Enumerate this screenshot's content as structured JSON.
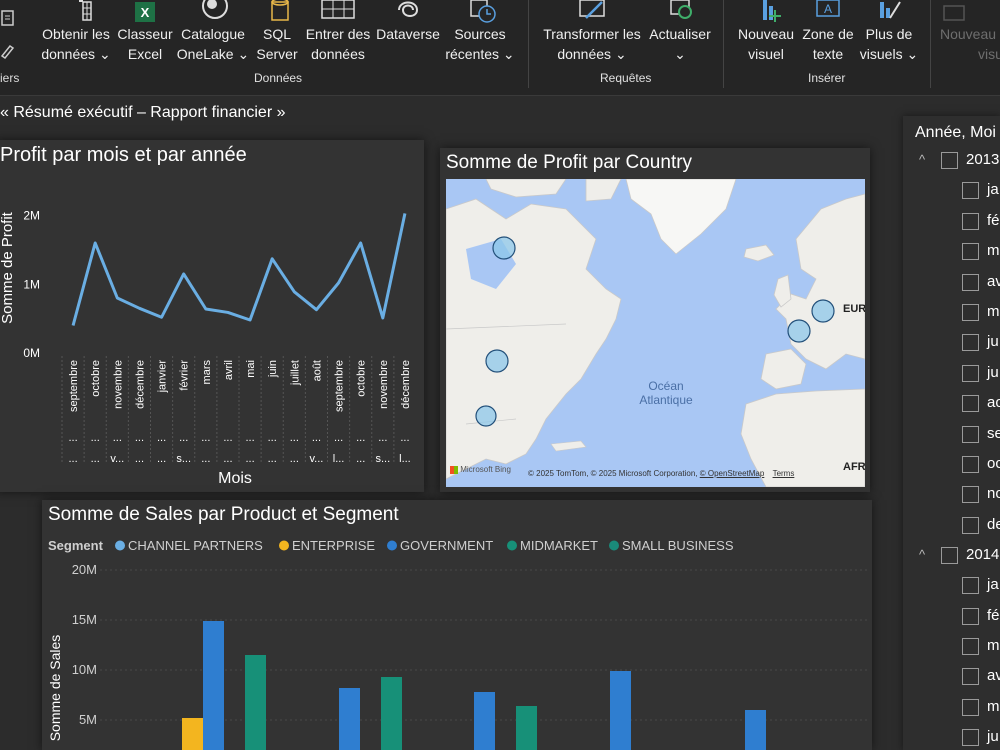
{
  "ribbon": {
    "partial_left_label": "iers",
    "buttons": [
      {
        "line1": "Obtenir les",
        "line2": "données",
        "dropdown": true,
        "icon": "table-icon"
      },
      {
        "line1": "Classeur",
        "line2": "Excel",
        "dropdown": false,
        "icon": "excel-icon"
      },
      {
        "line1": "Catalogue",
        "line2": "OneLake",
        "dropdown": true,
        "icon": "onelake-icon"
      },
      {
        "line1": "SQL",
        "line2": "Server",
        "dropdown": false,
        "icon": "database-icon"
      },
      {
        "line1": "Entrer des",
        "line2": "données",
        "dropdown": false,
        "icon": "grid-icon"
      },
      {
        "line1": "Dataverse",
        "line2": "",
        "dropdown": false,
        "icon": "dataverse-icon"
      },
      {
        "line1": "Sources",
        "line2": "récentes",
        "dropdown": true,
        "icon": "recent-sources-icon"
      },
      {
        "line1": "Transformer les",
        "line2": "données",
        "dropdown": true,
        "icon": "transform-icon"
      },
      {
        "line1": "Actualiser",
        "line2": "",
        "dropdown": true,
        "icon": "refresh-icon"
      },
      {
        "line1": "Nouveau",
        "line2": "visuel",
        "dropdown": false,
        "icon": "new-visual-icon"
      },
      {
        "line1": "Zone de",
        "line2": "texte",
        "dropdown": false,
        "icon": "text-box-icon"
      },
      {
        "line1": "Plus de",
        "line2": "visuels",
        "dropdown": true,
        "icon": "more-visuals-icon"
      },
      {
        "line1": "Nouveau",
        "line2": "visu",
        "dropdown": false,
        "icon": "new-visual-disabled-icon"
      }
    ],
    "groups": {
      "data": "Données",
      "queries": "Requêtes",
      "insert": "Insérer"
    }
  },
  "page_title": "« Résumé exécutif – Rapport financier »",
  "line_visual": {
    "title": "Profit par mois et par année",
    "chart_data": {
      "type": "line",
      "xlabel": "Mois",
      "ylabel": "Somme de Profit",
      "ylim": [
        0,
        2400000
      ],
      "yticks": [
        "0M",
        "1M",
        "2M"
      ],
      "categories": [
        "septembre",
        "octobre",
        "novembre",
        "décembre",
        "janvier",
        "février",
        "mars",
        "avril",
        "mai",
        "juin",
        "juillet",
        "août",
        "septembre",
        "octobre",
        "novembre",
        "décembre"
      ],
      "sub_labels_row1": [
        "...",
        "...",
        "...",
        "...",
        "...",
        "...",
        "...",
        "...",
        "...",
        "...",
        "...",
        "...",
        "...",
        "...",
        "...",
        "..."
      ],
      "sub_labels_row2": [
        "...",
        "...",
        "v...",
        "...",
        "...",
        "s...",
        "...",
        "...",
        "...",
        "...",
        "...",
        "v...",
        "l...",
        "...",
        "s...",
        "l..."
      ],
      "values": [
        400000,
        1600000,
        800000,
        650000,
        520000,
        1150000,
        640000,
        590000,
        480000,
        1370000,
        890000,
        630000,
        1020000,
        1600000,
        510000,
        2030000
      ],
      "color": "#6aaee3"
    }
  },
  "map_visual": {
    "title": "Somme de Profit par Country",
    "ocean_label_1": "Océan",
    "ocean_label_2": "Atlantique",
    "region_label_europe": "EUR",
    "region_label_africa": "AFR",
    "bing_logo": "Microsoft Bing",
    "copyright": "© 2025 TomTom, © 2025 Microsoft Corporation,",
    "osm_link": "© OpenStreetMap",
    "terms_link": "Terms",
    "bubble_color": "#8ec7ea"
  },
  "bar_visual": {
    "title": "Somme de Sales par Product et Segment",
    "legend_title": "Segment",
    "chart_data": {
      "type": "bar",
      "ylabel": "Somme de Sales",
      "yticks": [
        "5M",
        "10M",
        "15M",
        "20M"
      ],
      "ylim": [
        0,
        20000000
      ],
      "series": [
        {
          "name": "CHANNEL PARTNERS",
          "color": "#6aaee3"
        },
        {
          "name": "ENTERPRISE",
          "color": "#f3b51f"
        },
        {
          "name": "GOVERNMENT",
          "color": "#2f7ed0"
        },
        {
          "name": "MIDMARKET",
          "color": "#179078"
        },
        {
          "name": "SMALL BUSINESS",
          "color": "#1a8a7a"
        }
      ],
      "visible_bars": [
        {
          "series": "ENTERPRISE",
          "value": 5200000
        },
        {
          "series": "GOVERNMENT",
          "value": 14900000
        },
        {
          "series": "MIDMARKET",
          "value": 11500000
        },
        {
          "series": "GOVERNMENT",
          "value": 8200000
        },
        {
          "series": "MIDMARKET",
          "value": 9300000
        },
        {
          "series": "GOVERNMENT",
          "value": 7800000
        },
        {
          "series": "MIDMARKET",
          "value": 6400000
        },
        {
          "series": "GOVERNMENT",
          "value": 9900000
        },
        {
          "series": "GOVERNMENT",
          "value": 6000000
        }
      ]
    }
  },
  "slicer": {
    "title": "Année, Moi",
    "items": [
      {
        "label": "2013",
        "level": 0
      },
      {
        "label": "ja",
        "level": 1
      },
      {
        "label": "fé",
        "level": 1
      },
      {
        "label": "m",
        "level": 1
      },
      {
        "label": "av",
        "level": 1
      },
      {
        "label": "m",
        "level": 1
      },
      {
        "label": "ju",
        "level": 1
      },
      {
        "label": "ju",
        "level": 1
      },
      {
        "label": "ao",
        "level": 1
      },
      {
        "label": "se",
        "level": 1
      },
      {
        "label": "oc",
        "level": 1
      },
      {
        "label": "no",
        "level": 1
      },
      {
        "label": "de",
        "level": 1
      },
      {
        "label": "2014",
        "level": 0
      },
      {
        "label": "ja",
        "level": 1
      },
      {
        "label": "fé",
        "level": 1
      },
      {
        "label": "m",
        "level": 1
      },
      {
        "label": "av",
        "level": 1
      },
      {
        "label": "m",
        "level": 1
      },
      {
        "label": "ju",
        "level": 1
      }
    ]
  }
}
